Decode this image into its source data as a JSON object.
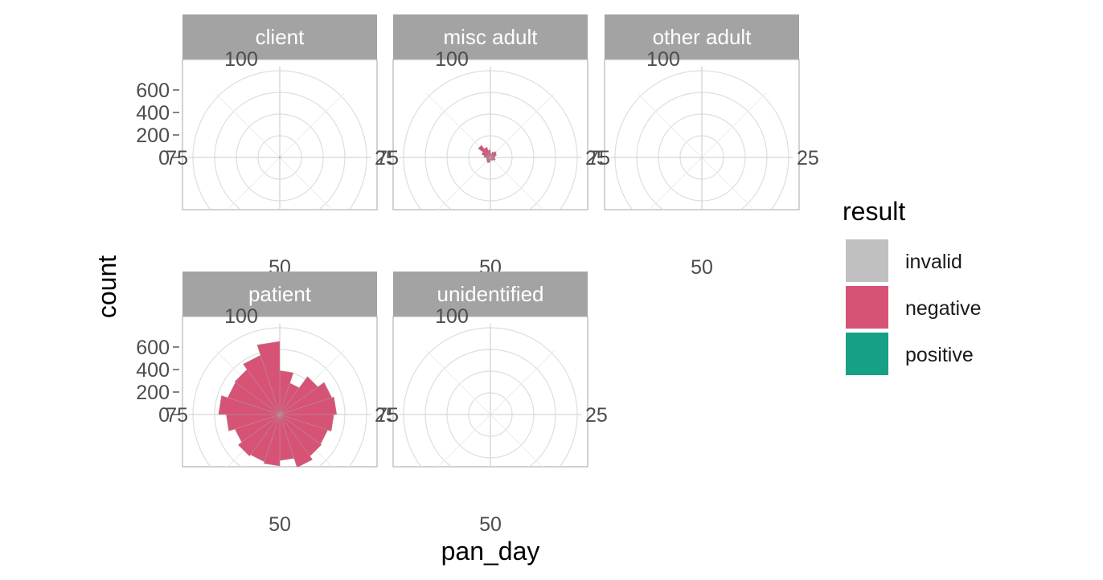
{
  "chart_data": {
    "type": "bar",
    "coord": "polar",
    "facet_var": "drawn",
    "facets": [
      {
        "label": "client",
        "series": [
          {
            "name": "negative",
            "values": [
              5,
              6,
              4,
              7,
              5,
              6,
              5,
              4,
              6,
              5,
              7,
              6,
              5,
              4,
              6,
              5,
              5,
              6,
              4,
              5
            ]
          }
        ]
      },
      {
        "label": "misc adult",
        "series": [
          {
            "name": "negative",
            "values": [
              35,
              55,
              70,
              60,
              45,
              40,
              50,
              35,
              30,
              25,
              45,
              55,
              45,
              40,
              35,
              60,
              85,
              140,
              100,
              70
            ]
          }
        ]
      },
      {
        "label": "other adult",
        "series": [
          {
            "name": "negative",
            "values": [
              2,
              3,
              2,
              2,
              3,
              2,
              2,
              3,
              2,
              2,
              3,
              2,
              2,
              2,
              3,
              2,
              2,
              3,
              2,
              2
            ]
          }
        ]
      },
      {
        "label": "patient",
        "series": [
          {
            "name": "negative",
            "values": [
              400,
              300,
              430,
              500,
              520,
              495,
              460,
              470,
              510,
              420,
              470,
              455,
              470,
              430,
              490,
              560,
              500,
              510,
              570,
              670
            ]
          },
          {
            "name": "positive",
            "values": [
              5,
              5,
              4,
              5,
              5,
              4,
              5,
              5,
              4,
              5,
              5,
              4,
              5,
              5,
              4,
              5,
              5,
              4,
              5,
              5
            ]
          }
        ]
      },
      {
        "label": "unidentified",
        "series": []
      }
    ],
    "x_range": [
      0,
      100
    ],
    "theta_tick_labels": [
      "25",
      "50",
      "75",
      "100"
    ],
    "r_range": [
      0,
      800
    ],
    "r_tick_labels": [
      "0",
      "200",
      "400",
      "600"
    ],
    "grid": true,
    "xlabel": "pan_day",
    "ylabel": "count",
    "legend": {
      "title": "result",
      "placement": "right",
      "entries": [
        {
          "name": "invalid",
          "color": "#c0c0c0"
        },
        {
          "name": "negative",
          "color": "#d75376"
        },
        {
          "name": "positive",
          "color": "#16a085"
        }
      ]
    }
  }
}
